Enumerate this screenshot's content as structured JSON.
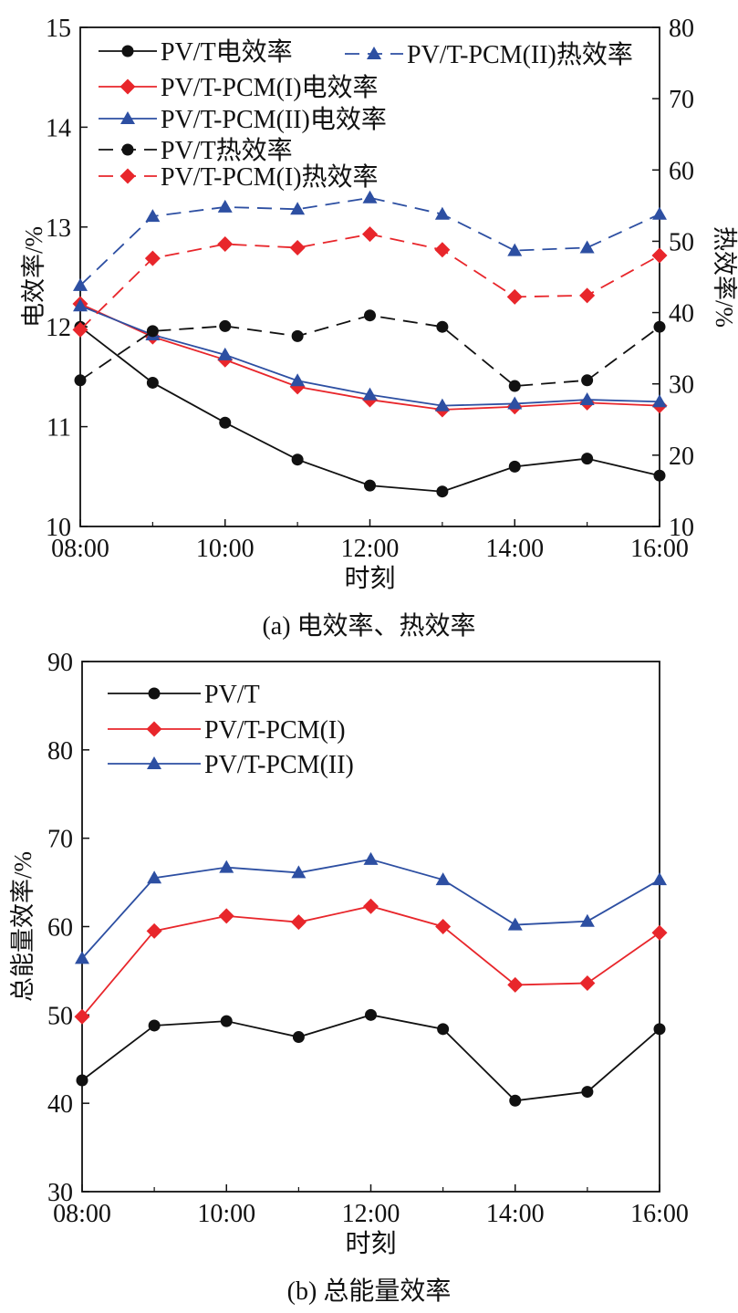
{
  "chart_data": [
    {
      "type": "line",
      "caption": "(a) 电效率、热效率",
      "xlabel": "时刻",
      "ylabel_left": "电效率/%",
      "ylabel_right": "热效率/%",
      "x_ticks": [
        "08:00",
        "10:00",
        "12:00",
        "14:00",
        "16:00"
      ],
      "x_hours": [
        8,
        9,
        10,
        11,
        12,
        13,
        14,
        15,
        16
      ],
      "xlim": [
        8,
        16
      ],
      "ylim_left": [
        10,
        15
      ],
      "yticks_left": [
        "10",
        "11",
        "12",
        "13",
        "14",
        "15"
      ],
      "ylim_right": [
        10,
        80
      ],
      "yticks_right": [
        "10",
        "20",
        "30",
        "40",
        "50",
        "60",
        "70",
        "80"
      ],
      "legend_position": "top",
      "series": [
        {
          "name": "PV/T电效率",
          "axis": "left",
          "color": "#111111",
          "marker": "circle",
          "dash": "solid",
          "values": [
            12.0,
            11.44,
            11.04,
            10.67,
            10.41,
            10.35,
            10.6,
            10.68,
            10.51
          ]
        },
        {
          "name": "PV/T-PCM(I)电效率",
          "axis": "left",
          "color": "#e8262b",
          "marker": "diamond",
          "dash": "solid",
          "values": [
            12.23,
            11.9,
            11.67,
            11.4,
            11.27,
            11.17,
            11.2,
            11.24,
            11.21
          ]
        },
        {
          "name": "PV/T-PCM(II)电效率",
          "axis": "left",
          "color": "#2d4fa2",
          "marker": "triangle",
          "dash": "solid",
          "values": [
            12.21,
            11.92,
            11.72,
            11.46,
            11.32,
            11.21,
            11.23,
            11.27,
            11.25
          ]
        },
        {
          "name": "PV/T热效率",
          "axis": "right",
          "color": "#111111",
          "marker": "circle",
          "dash": "dashed",
          "values": [
            30.5,
            37.4,
            38.1,
            36.7,
            39.6,
            38.0,
            29.7,
            30.5,
            38.0
          ]
        },
        {
          "name": "PV/T-PCM(I)热效率",
          "axis": "right",
          "color": "#e8262b",
          "marker": "diamond",
          "dash": "dashed",
          "values": [
            37.6,
            47.6,
            49.6,
            49.1,
            51.0,
            48.8,
            42.2,
            42.4,
            48.0
          ]
        },
        {
          "name": "PV/T-PCM(II)热效率",
          "axis": "right",
          "color": "#2d4fa2",
          "marker": "triangle",
          "dash": "dashed",
          "values": [
            43.8,
            53.5,
            54.8,
            54.5,
            56.1,
            53.8,
            48.7,
            49.1,
            53.8
          ]
        }
      ]
    },
    {
      "type": "line",
      "caption": "(b) 总能量效率",
      "xlabel": "时刻",
      "ylabel": "总能量效率/%",
      "x_ticks": [
        "08:00",
        "10:00",
        "12:00",
        "14:00",
        "16:00"
      ],
      "x_hours": [
        8,
        9,
        10,
        11,
        12,
        13,
        14,
        15,
        16
      ],
      "xlim": [
        8,
        16
      ],
      "ylim": [
        30,
        90
      ],
      "yticks": [
        "30",
        "40",
        "50",
        "60",
        "70",
        "80",
        "90"
      ],
      "legend_position": "top-left",
      "series": [
        {
          "name": "PV/T",
          "color": "#111111",
          "marker": "circle",
          "dash": "solid",
          "values": [
            42.6,
            48.8,
            49.3,
            47.5,
            50.0,
            48.4,
            40.3,
            41.3,
            48.4
          ]
        },
        {
          "name": "PV/T-PCM(I)",
          "color": "#e8262b",
          "marker": "diamond",
          "dash": "solid",
          "values": [
            49.8,
            59.5,
            61.2,
            60.5,
            62.3,
            60.0,
            53.4,
            53.6,
            59.3
          ]
        },
        {
          "name": "PV/T-PCM(II)",
          "color": "#2d4fa2",
          "marker": "triangle",
          "dash": "solid",
          "values": [
            56.4,
            65.5,
            66.7,
            66.1,
            67.6,
            65.3,
            60.2,
            60.6,
            65.3
          ]
        }
      ]
    }
  ]
}
